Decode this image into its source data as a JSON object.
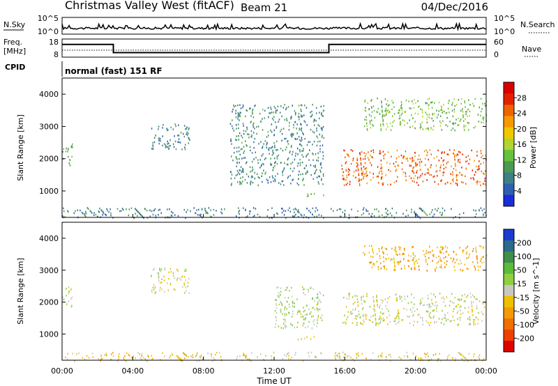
{
  "header": {
    "station": "Christmas Valley West (fitACF)",
    "beam": "Beam 21",
    "date": "04/Dec/2016"
  },
  "strip_labels": {
    "nsky": "N.Sky",
    "nsky_tick_hi": "10^5",
    "nsky_tick_lo": "10^0",
    "nsearch": "N.Search",
    "nsearch_tick_hi": "10^5",
    "nsearch_tick_lo": "10^0",
    "freq": "Freq.",
    "freq_unit": "[MHz]",
    "freq_tick_hi": "18",
    "freq_tick_lo": "8",
    "nave": "Nave",
    "nave_tick_hi": "60",
    "nave_tick_lo": "0",
    "cpid": "CPID",
    "mode": "normal (fast) 151 RF"
  },
  "colors": {
    "frame": "#000000",
    "power_scale": [
      "#1a2dd9",
      "#2f5fb0",
      "#3f7f86",
      "#4c9a52",
      "#66c23d",
      "#b0d430",
      "#f0c800",
      "#f59a00",
      "#f06400",
      "#e52000",
      "#d80000"
    ],
    "velocity_scale": [
      "#e00000",
      "#f04000",
      "#f07000",
      "#f59a00",
      "#f0c000",
      "#c8c8c0",
      "#8ed040",
      "#5cbb3a",
      "#3f8e4a",
      "#2a6a8a",
      "#1a3ad0"
    ]
  },
  "chart_data": [
    {
      "type": "heatmap",
      "name": "power",
      "title": "",
      "xlabel": "",
      "ylabel": "Slant Range [km]",
      "xticks": [
        "00:00",
        "04:00",
        "08:00",
        "12:00",
        "16:00",
        "20:00",
        "00:00"
      ],
      "yticks": [
        "1000",
        "2000",
        "3000",
        "4000"
      ],
      "ylim": [
        180,
        4500
      ],
      "colorbar_label": "Power [dB]",
      "colorbar_ticks": [
        "4",
        "8",
        "12",
        "16",
        "20",
        "24",
        "28"
      ],
      "colorbar_range": [
        0,
        30
      ],
      "regions": [
        {
          "t": [
            0.0,
            0.6
          ],
          "r": [
            1800,
            2500
          ],
          "value": 10
        },
        {
          "t": [
            5.0,
            7.2
          ],
          "r": [
            2300,
            3100
          ],
          "value": 6
        },
        {
          "t": [
            9.5,
            14.8
          ],
          "r": [
            1200,
            3700
          ],
          "value": 7
        },
        {
          "t": [
            13.3,
            14.8
          ],
          "r": [
            850,
            950
          ],
          "value": 10
        },
        {
          "t": [
            15.8,
            24.0
          ],
          "r": [
            1200,
            2300
          ],
          "value": 24
        },
        {
          "t": [
            17.0,
            24.0
          ],
          "r": [
            2900,
            3900
          ],
          "value": 12
        },
        {
          "t": [
            0.0,
            24.0
          ],
          "r": [
            180,
            500
          ],
          "value": 6
        }
      ]
    },
    {
      "type": "heatmap",
      "name": "velocity",
      "title": "",
      "xlabel": "Time UT",
      "ylabel": "Slant Range [km]",
      "xticks": [
        "00:00",
        "04:00",
        "08:00",
        "12:00",
        "16:00",
        "20:00",
        "00:00"
      ],
      "yticks": [
        "1000",
        "2000",
        "3000",
        "4000"
      ],
      "ylim": [
        180,
        4500
      ],
      "colorbar_label": "Velocity [m s^-1]",
      "colorbar_ticks": [
        "-200",
        "-100",
        "-50",
        "-15",
        "15",
        "50",
        "100",
        "200"
      ],
      "colorbar_range": [
        -250,
        250
      ],
      "regions": [
        {
          "t": [
            0.0,
            0.6
          ],
          "r": [
            1800,
            2500
          ],
          "value": 0
        },
        {
          "t": [
            5.0,
            7.2
          ],
          "r": [
            2300,
            3100
          ],
          "value": 0
        },
        {
          "t": [
            12.0,
            14.8
          ],
          "r": [
            1200,
            2500
          ],
          "value": 30
        },
        {
          "t": [
            13.3,
            14.8
          ],
          "r": [
            850,
            950
          ],
          "value": -60
        },
        {
          "t": [
            15.8,
            24.0
          ],
          "r": [
            1300,
            2300
          ],
          "value": 0
        },
        {
          "t": [
            17.0,
            24.0
          ],
          "r": [
            3000,
            3800
          ],
          "value": -80
        },
        {
          "t": [
            0.0,
            24.0
          ],
          "r": [
            180,
            450
          ],
          "value": -30
        }
      ]
    }
  ],
  "frequency_profile": {
    "segments": [
      {
        "t": [
          0.0,
          2.9
        ],
        "freq_mhz": 15.0
      },
      {
        "t": [
          2.9,
          15.1
        ],
        "freq_mhz": 10.5
      },
      {
        "t": [
          15.1,
          24.0
        ],
        "freq_mhz": 15.0
      }
    ]
  }
}
